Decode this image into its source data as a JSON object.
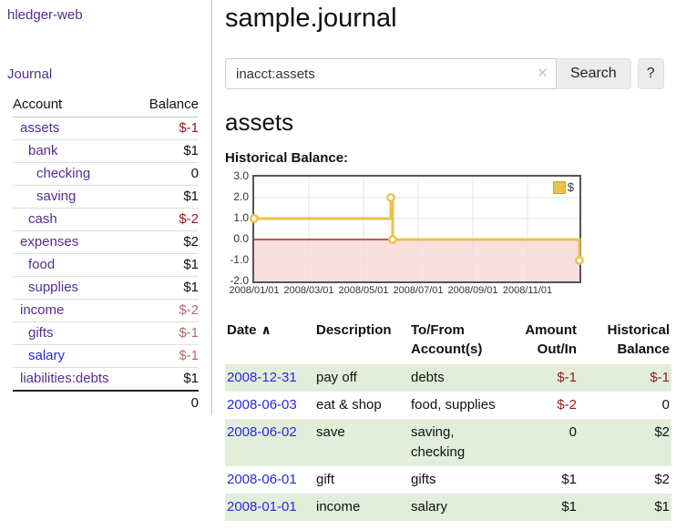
{
  "app": {
    "title": "hledger-web"
  },
  "sidebar": {
    "journal_link": "Journal",
    "header": {
      "account": "Account",
      "balance": "Balance"
    },
    "accounts": [
      {
        "name": "assets",
        "balance": "$-1",
        "indent": 0,
        "bold": true,
        "neg_strong": true
      },
      {
        "name": "bank",
        "balance": "$1",
        "indent": 1,
        "bold": true
      },
      {
        "name": "checking",
        "balance": "0",
        "indent": 2,
        "bold": true
      },
      {
        "name": "saving",
        "balance": "$1",
        "indent": 2,
        "bold": true
      },
      {
        "name": "cash",
        "balance": "$-2",
        "indent": 1,
        "bold": true,
        "neg_strong": true
      },
      {
        "name": "expenses",
        "balance": "$2",
        "indent": 0
      },
      {
        "name": "food",
        "balance": "$1",
        "indent": 1
      },
      {
        "name": "supplies",
        "balance": "$1",
        "indent": 1
      },
      {
        "name": "income",
        "balance": "$-2",
        "indent": 0,
        "neg_soft": true
      },
      {
        "name": "gifts",
        "balance": "$-1",
        "indent": 1,
        "neg_soft": true
      },
      {
        "name": "salary",
        "balance": "$-1",
        "indent": 1,
        "neg_soft": true,
        "blue": true
      },
      {
        "name": "liabilities:debts",
        "balance": "$1",
        "indent": 0
      }
    ],
    "total": "0"
  },
  "main": {
    "title": "sample.journal",
    "search": {
      "value": "inacct:assets",
      "clear_icon": "✕",
      "button_label": "Search",
      "help_label": "?"
    },
    "account_heading": "assets",
    "chart_heading": "Historical Balance:"
  },
  "chart_data": {
    "type": "line",
    "title": "Historical Balance",
    "step": true,
    "legend_position": "top-right",
    "grid": true,
    "ylim": [
      -2,
      3
    ],
    "xlim_months": [
      0,
      11.9
    ],
    "series": [
      {
        "name": "$",
        "color": "#e9c24a",
        "points": [
          [
            "2008-01-01",
            1
          ],
          [
            "2008-06-01",
            2
          ],
          [
            "2008-06-03",
            0
          ],
          [
            "2008-12-31",
            -1
          ]
        ]
      }
    ],
    "yticks": [
      {
        "v": 3,
        "label": "3.0"
      },
      {
        "v": 2,
        "label": "2.0"
      },
      {
        "v": 1,
        "label": "1.0"
      },
      {
        "v": 0,
        "label": "0.0"
      },
      {
        "v": -1,
        "label": "-1.0"
      },
      {
        "v": -2,
        "label": "-2.0"
      }
    ],
    "xticks": [
      {
        "m": 0,
        "label": "2008/01/01"
      },
      {
        "m": 2,
        "label": "2008/03/01"
      },
      {
        "m": 4,
        "label": "2008/05/01"
      },
      {
        "m": 6,
        "label": "2008/07/01"
      },
      {
        "m": 8,
        "label": "2008/09/01"
      },
      {
        "m": 10,
        "label": "2008/11/01"
      }
    ],
    "negative_fill": "#fbdede",
    "zero_line": "#8b0000",
    "grid_color": "#e3e3e3",
    "point_fill": "#ffffff"
  },
  "register": {
    "headers": {
      "date": "Date",
      "sort_icon": "∧",
      "description": "Description",
      "tofrom": "To/From Account(s)",
      "amount": "Amount Out/In",
      "balance": "Historical Balance"
    },
    "rows": [
      {
        "date": "2008-12-31",
        "description": "pay off",
        "accounts": "debts",
        "amount": "$-1",
        "amount_neg": true,
        "balance": "$-1",
        "balance_neg": true,
        "shaded": true
      },
      {
        "date": "2008-06-03",
        "description": "eat & shop",
        "accounts": "food, supplies",
        "amount": "$-2",
        "amount_neg": true,
        "balance": "0",
        "balance_neg": false,
        "shaded": false
      },
      {
        "date": "2008-06-02",
        "description": "save",
        "accounts": "saving, checking",
        "amount": "0",
        "amount_neg": false,
        "balance": "$2",
        "balance_neg": false,
        "shaded": true
      },
      {
        "date": "2008-06-01",
        "description": "gift",
        "accounts": "gifts",
        "amount": "$1",
        "amount_neg": false,
        "balance": "$2",
        "balance_neg": false,
        "shaded": false
      },
      {
        "date": "2008-01-01",
        "description": "income",
        "accounts": "salary",
        "amount": "$1",
        "amount_neg": false,
        "balance": "$1",
        "balance_neg": false,
        "shaded": true
      }
    ]
  }
}
